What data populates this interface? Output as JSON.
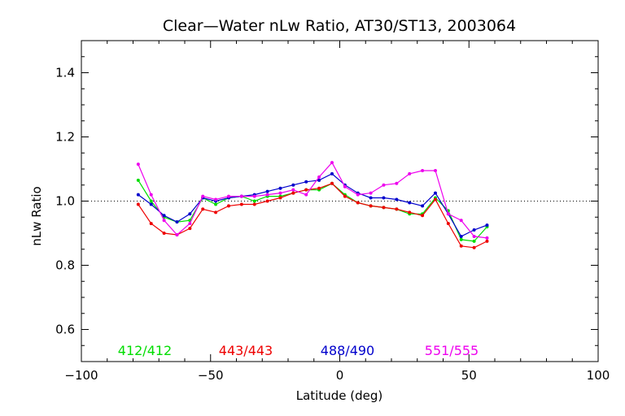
{
  "chart_data": {
    "type": "line",
    "title": "Clear—Water nLw Ratio, AT30/ST13, 2003064",
    "xlabel": "Latitude (deg)",
    "ylabel": "nLw Ratio",
    "xlim": [
      -100,
      100
    ],
    "ylim": [
      0.5,
      1.5
    ],
    "xticks": [
      -100,
      -50,
      0,
      50,
      100
    ],
    "xtick_labels": [
      "−100",
      "−50",
      "0",
      "50",
      "100"
    ],
    "yticks": [
      0.6,
      0.8,
      1.0,
      1.2,
      1.4
    ],
    "ytick_labels": [
      "0.6",
      "0.8",
      "1.0",
      "1.2",
      "1.4"
    ],
    "reference_line": 1.0,
    "grid": false,
    "legend_placement": "bottom, inside plot",
    "x": [
      -78,
      -73,
      -68,
      -63,
      -58,
      -53,
      -48,
      -43,
      -38,
      -33,
      -28,
      -23,
      -18,
      -13,
      -8,
      -3,
      2,
      7,
      12,
      17,
      22,
      27,
      32,
      37,
      42,
      47,
      52,
      57
    ],
    "series": [
      {
        "name": "412/412",
        "color": "#00dd00",
        "values": [
          1.065,
          1.0,
          0.95,
          0.935,
          0.94,
          1.01,
          0.99,
          1.01,
          1.015,
          1.0,
          1.015,
          1.015,
          1.025,
          1.035,
          1.035,
          1.055,
          1.02,
          0.995,
          0.985,
          0.98,
          0.975,
          0.96,
          0.96,
          1.01,
          0.97,
          0.88,
          0.875,
          0.92
        ]
      },
      {
        "name": "443/443",
        "color": "#ee0000",
        "values": [
          0.99,
          0.93,
          0.9,
          0.895,
          0.915,
          0.975,
          0.965,
          0.985,
          0.99,
          0.99,
          1.0,
          1.01,
          1.025,
          1.035,
          1.04,
          1.055,
          1.015,
          0.995,
          0.985,
          0.98,
          0.975,
          0.965,
          0.955,
          1.005,
          0.93,
          0.86,
          0.855,
          0.875
        ]
      },
      {
        "name": "488/490",
        "color": "#0000cc",
        "values": [
          1.02,
          0.99,
          0.955,
          0.935,
          0.96,
          1.01,
          1.0,
          1.01,
          1.015,
          1.02,
          1.03,
          1.04,
          1.05,
          1.06,
          1.065,
          1.085,
          1.05,
          1.025,
          1.01,
          1.01,
          1.005,
          0.995,
          0.985,
          1.025,
          0.96,
          0.89,
          0.91,
          0.925
        ]
      },
      {
        "name": "551/555",
        "color": "#ee00ee",
        "values": [
          1.115,
          1.02,
          0.94,
          0.895,
          0.93,
          1.015,
          1.005,
          1.015,
          1.015,
          1.015,
          1.02,
          1.025,
          1.035,
          1.02,
          1.075,
          1.12,
          1.045,
          1.02,
          1.025,
          1.05,
          1.055,
          1.085,
          1.095,
          1.095,
          0.96,
          0.94,
          0.89,
          0.885
        ]
      }
    ]
  }
}
